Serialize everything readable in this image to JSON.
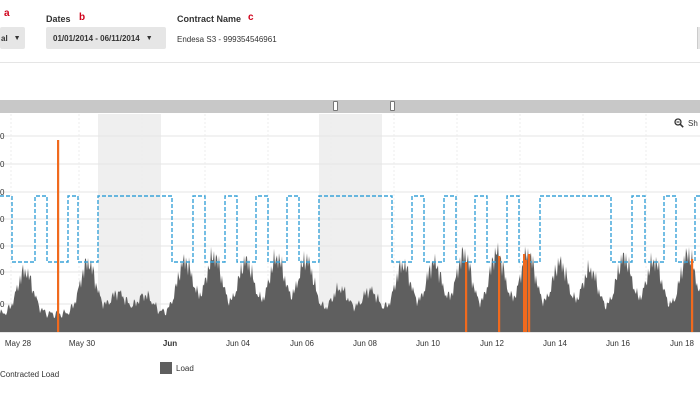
{
  "filters": {
    "first_dropdown_value": "al",
    "first_letter": "a",
    "dates_label": "Dates",
    "dates_letter": "b",
    "dates_value": "01/01/2014 - 06/11/2014",
    "contract_label": "Contract Name",
    "contract_letter": "c",
    "contract_value": "Endesa S3 - 999354546961"
  },
  "chart": {
    "zoom_label": "Sh",
    "y_tick_labels": [
      "0",
      "0",
      "0",
      "0",
      "0",
      "0",
      "0",
      "0"
    ],
    "legend": {
      "contracted": "Contracted Load",
      "load": "Load"
    },
    "colors": {
      "contracted": "#3aa3d8",
      "load": "#5f5f5f",
      "spike": "#f06a1e",
      "weekend_band": "#efefef",
      "grid": "#e4e4e4"
    }
  },
  "chart_data": {
    "type": "area",
    "x_tick_labels": [
      "May 28",
      "May 30",
      "Jun",
      "Jun 04",
      "Jun 06",
      "Jun 08",
      "Jun 10",
      "Jun 12",
      "Jun 14",
      "Jun 16",
      "Jun 18"
    ],
    "bold_ticks": [
      "Jun"
    ],
    "series": [
      {
        "name": "Contracted Load",
        "style": "dashed-step"
      },
      {
        "name": "Load",
        "style": "filled-area"
      }
    ]
  }
}
